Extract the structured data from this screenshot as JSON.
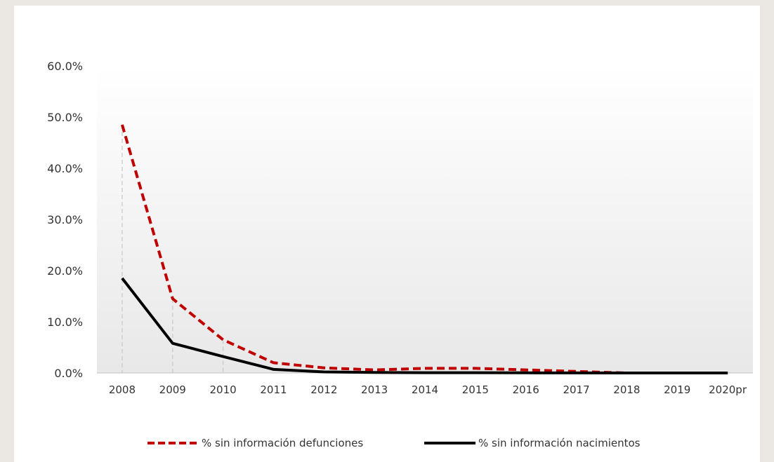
{
  "chart_data": {
    "type": "line",
    "categories": [
      "2008",
      "2009",
      "2010",
      "2011",
      "2012",
      "2013",
      "2014",
      "2015",
      "2016",
      "2017",
      "2018",
      "2019",
      "2020pr"
    ],
    "ylim": [
      0,
      60
    ],
    "yticks": [
      0,
      10,
      20,
      30,
      40,
      50,
      60
    ],
    "ytick_labels": [
      "0.0%",
      "10.0%",
      "20.0%",
      "30.0%",
      "40.0%",
      "50.0%",
      "60.0%"
    ],
    "legend_position": "bottom",
    "series": [
      {
        "name": "% sin información defunciones",
        "values": [
          48.5,
          14.5,
          6.5,
          2.0,
          1.0,
          0.6,
          0.9,
          0.9,
          0.6,
          0.3,
          0.0,
          0.0,
          0.0
        ],
        "color": "#c00000",
        "style": "dashed"
      },
      {
        "name": "% sin información nacimientos",
        "values": [
          18.5,
          5.8,
          3.2,
          0.7,
          0.2,
          0.1,
          0.05,
          0.05,
          0.03,
          0.02,
          0.0,
          0.0,
          0.0
        ],
        "color": "#000000",
        "style": "solid"
      }
    ]
  }
}
